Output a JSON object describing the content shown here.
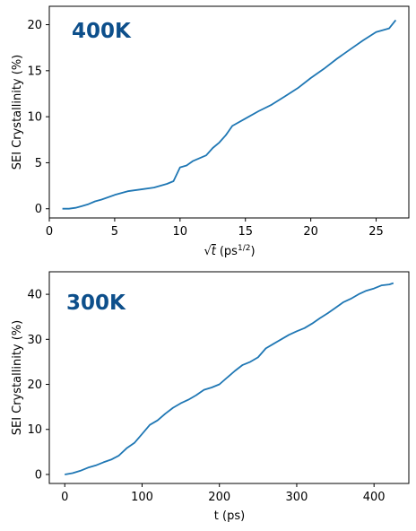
{
  "colors": {
    "line": "#1f77b4",
    "annotation": "#0d4f8b",
    "axes": "#000000"
  },
  "chart_data": [
    {
      "type": "line",
      "title": "",
      "annotation": "400K",
      "xlabel_prefix": "√",
      "xlabel_var": "t",
      "xlabel_unit": "(ps",
      "xlabel_sup": "1/2",
      "xlabel_close": ")",
      "ylabel": "SEI Crystallinity (%)",
      "xlim": [
        0,
        27.5
      ],
      "ylim": [
        -1,
        22
      ],
      "xticks": [
        0,
        5,
        10,
        15,
        20,
        25
      ],
      "yticks": [
        0,
        5,
        10,
        15,
        20
      ],
      "grid": false,
      "legend": "none",
      "series": [
        {
          "x": [
            1.0,
            1.5,
            2.0,
            2.5,
            3.0,
            3.5,
            4.0,
            5.0,
            6.0,
            7.0,
            8.0,
            9.0,
            9.5,
            10.0,
            10.5,
            11.0,
            12.0,
            12.5,
            13.0,
            13.5,
            14.0,
            15.0,
            16.0,
            17.0,
            18.0,
            19.0,
            20.0,
            21.0,
            22.0,
            23.0,
            24.0,
            25.0,
            26.0,
            26.5
          ],
          "y": [
            0.0,
            0.0,
            0.1,
            0.3,
            0.5,
            0.8,
            1.0,
            1.5,
            1.9,
            2.1,
            2.3,
            2.7,
            3.0,
            4.5,
            4.7,
            5.2,
            5.8,
            6.6,
            7.2,
            8.0,
            9.0,
            9.8,
            10.6,
            11.3,
            12.2,
            13.1,
            14.2,
            15.2,
            16.3,
            17.3,
            18.3,
            19.2,
            19.6,
            20.5
          ]
        }
      ]
    },
    {
      "type": "line",
      "title": "",
      "annotation": "300K",
      "xlabel": "t (ps)",
      "ylabel": "SEI Crystallinity (%)",
      "xlim": [
        -20,
        445
      ],
      "ylim": [
        -2,
        45
      ],
      "xticks": [
        0,
        100,
        200,
        300,
        400
      ],
      "yticks": [
        0,
        10,
        20,
        30,
        40
      ],
      "grid": false,
      "legend": "none",
      "series": [
        {
          "x": [
            0,
            10,
            20,
            30,
            40,
            50,
            60,
            70,
            80,
            90,
            100,
            110,
            120,
            130,
            140,
            150,
            160,
            170,
            180,
            190,
            200,
            210,
            220,
            230,
            240,
            250,
            260,
            270,
            280,
            290,
            300,
            310,
            320,
            330,
            340,
            350,
            360,
            370,
            380,
            390,
            400,
            410,
            420,
            425
          ],
          "y": [
            0.0,
            0.3,
            0.8,
            1.5,
            2.0,
            2.7,
            3.3,
            4.2,
            5.8,
            7.0,
            9.0,
            11.0,
            12.0,
            13.5,
            14.8,
            15.8,
            16.6,
            17.6,
            18.8,
            19.3,
            20.0,
            21.5,
            23.0,
            24.3,
            25.0,
            26.0,
            28.0,
            29.0,
            30.0,
            31.0,
            31.8,
            32.5,
            33.5,
            34.7,
            35.8,
            37.0,
            38.2,
            39.0,
            40.0,
            40.8,
            41.3,
            42.0,
            42.2,
            42.5
          ]
        }
      ]
    }
  ]
}
